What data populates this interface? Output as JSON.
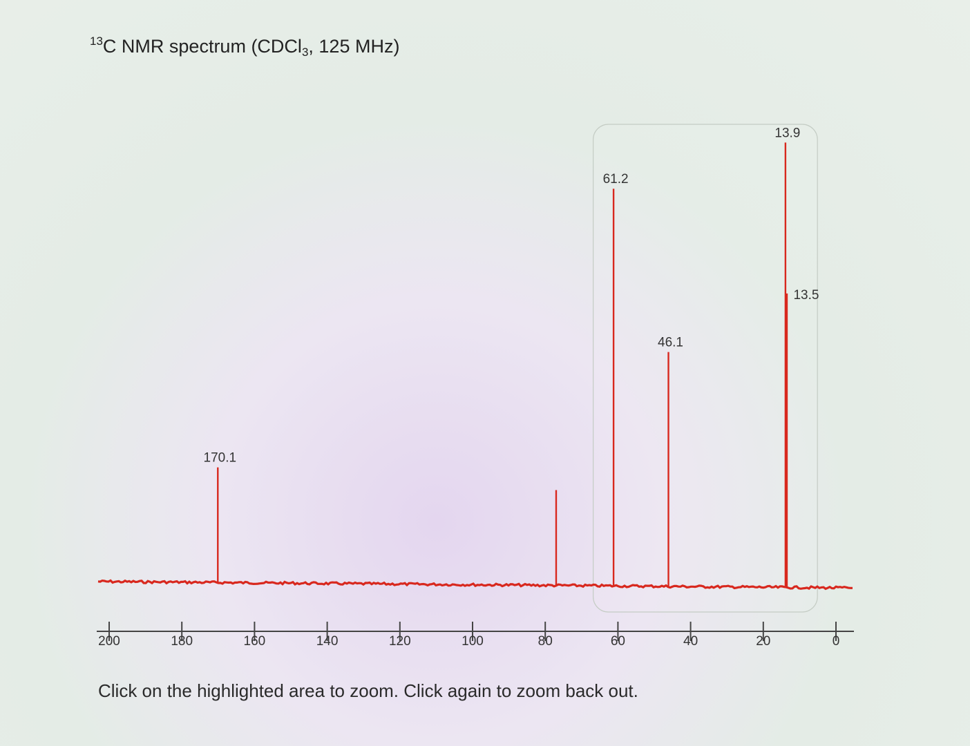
{
  "title": {
    "superscript": "13",
    "prefix": "C NMR spectrum (CDCl",
    "subscript": "3",
    "suffix": ", 125 MHz)"
  },
  "instructions": "Click on the highlighted area to zoom. Click again to zoom back out.",
  "colors": {
    "spectrum": "#d8281e",
    "axis": "#444444",
    "label": "#333333",
    "highlight_border": "#c4ccc4"
  },
  "chart_data": {
    "type": "line",
    "xlabel": "",
    "ylabel": "",
    "xlim": [
      200,
      0
    ],
    "x_reversed": true,
    "x_ticks": [
      200,
      180,
      160,
      140,
      120,
      100,
      80,
      60,
      40,
      20,
      0
    ],
    "x_tick_labels": [
      "200",
      "180",
      "160",
      "140",
      "120",
      "100",
      "80",
      "60",
      "40",
      "20",
      "0"
    ],
    "ylim": [
      0,
      1
    ],
    "peaks": [
      {
        "shift": 170.1,
        "intensity": 0.29,
        "label": "170.1"
      },
      {
        "shift": 77.0,
        "intensity": 0.24,
        "label": ""
      },
      {
        "shift": 61.2,
        "intensity": 1.0,
        "label": "61.2"
      },
      {
        "shift": 46.1,
        "intensity": 0.59,
        "label": "46.1"
      },
      {
        "shift": 13.9,
        "intensity": 1.12,
        "label": "13.9"
      },
      {
        "shift": 13.5,
        "intensity": 0.74,
        "label": "13.5"
      }
    ],
    "zoom_region": [
      63,
      7
    ]
  }
}
